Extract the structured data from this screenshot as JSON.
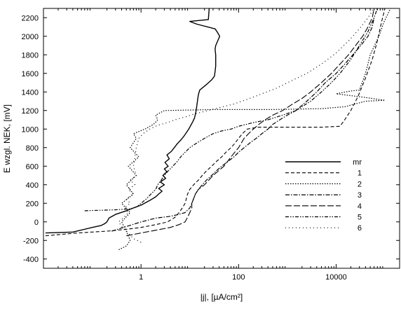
{
  "chart_data": {
    "type": "line",
    "xlabel": "|j|, [µA/cm²]",
    "ylabel": "E wzgl. NEK, [mV]",
    "x_scale": "log",
    "xlim": [
      0.01,
      200000
    ],
    "ylim": [
      -500,
      2300
    ],
    "x_ticks": [
      1,
      100,
      10000
    ],
    "x_tick_labels": [
      "1",
      "100",
      "10000"
    ],
    "y_ticks": [
      -400,
      -200,
      0,
      200,
      400,
      600,
      800,
      1000,
      1200,
      1400,
      1600,
      1800,
      2000,
      2200
    ],
    "grid": false,
    "legend_position": "right",
    "series": [
      {
        "name": "mr",
        "style": "solid",
        "points": [
          [
            0.011,
            -120
          ],
          [
            0.04,
            -110
          ],
          [
            0.1,
            -60
          ],
          [
            0.15,
            -40
          ],
          [
            0.18,
            -20
          ],
          [
            0.2,
            0
          ],
          [
            0.22,
            40
          ],
          [
            0.3,
            80
          ],
          [
            0.5,
            120
          ],
          [
            0.7,
            150
          ],
          [
            1.0,
            180
          ],
          [
            1.5,
            230
          ],
          [
            2.0,
            270
          ],
          [
            2.3,
            300
          ],
          [
            2.7,
            330
          ],
          [
            2.3,
            360
          ],
          [
            3.0,
            400
          ],
          [
            2.5,
            430
          ],
          [
            3.2,
            470
          ],
          [
            2.8,
            500
          ],
          [
            3.4,
            540
          ],
          [
            3.0,
            570
          ],
          [
            3.6,
            600
          ],
          [
            3.1,
            640
          ],
          [
            3.8,
            680
          ],
          [
            3.4,
            720
          ],
          [
            4.2,
            760
          ],
          [
            4.8,
            800
          ],
          [
            5.5,
            840
          ],
          [
            6.5,
            880
          ],
          [
            7.5,
            920
          ],
          [
            8.5,
            960
          ],
          [
            9.5,
            1000
          ],
          [
            10.5,
            1040
          ],
          [
            11.5,
            1080
          ],
          [
            12.5,
            1120
          ],
          [
            13,
            1160
          ],
          [
            13.5,
            1200
          ],
          [
            14,
            1260
          ],
          [
            14.5,
            1320
          ],
          [
            15,
            1370
          ],
          [
            16,
            1420
          ],
          [
            22,
            1480
          ],
          [
            28,
            1530
          ],
          [
            32,
            1570
          ],
          [
            33,
            1620
          ],
          [
            34,
            1680
          ],
          [
            34,
            1740
          ],
          [
            34,
            1800
          ],
          [
            33,
            1860
          ],
          [
            34,
            1900
          ],
          [
            38,
            1960
          ],
          [
            41,
            2000
          ],
          [
            37,
            2040
          ],
          [
            33,
            2080
          ],
          [
            14,
            2130
          ],
          [
            10,
            2160
          ],
          [
            24,
            2180
          ],
          [
            25,
            2300
          ]
        ]
      },
      {
        "name": "1",
        "style": "dashed",
        "points": [
          [
            0.011,
            -150
          ],
          [
            0.05,
            -120
          ],
          [
            0.2,
            -100
          ],
          [
            0.5,
            -80
          ],
          [
            1.0,
            -60
          ],
          [
            2.0,
            -30
          ],
          [
            3.5,
            0
          ],
          [
            5.0,
            50
          ],
          [
            6.0,
            100
          ],
          [
            7.0,
            150
          ],
          [
            8.0,
            200
          ],
          [
            8.5,
            250
          ],
          [
            9.0,
            300
          ],
          [
            10,
            350
          ],
          [
            12,
            400
          ],
          [
            15,
            450
          ],
          [
            18,
            500
          ],
          [
            22,
            550
          ],
          [
            28,
            600
          ],
          [
            35,
            650
          ],
          [
            45,
            700
          ],
          [
            55,
            750
          ],
          [
            70,
            800
          ],
          [
            85,
            850
          ],
          [
            100,
            900
          ],
          [
            120,
            950
          ],
          [
            150,
            1000
          ],
          [
            250,
            1020
          ],
          [
            1000,
            1020
          ],
          [
            5000,
            1020
          ],
          [
            12000,
            1030
          ],
          [
            15000,
            1100
          ],
          [
            20000,
            1200
          ],
          [
            28000,
            1350
          ],
          [
            40000,
            1550
          ],
          [
            55000,
            1750
          ],
          [
            70000,
            1950
          ],
          [
            85000,
            2150
          ],
          [
            100000,
            2300
          ]
        ]
      },
      {
        "name": "2",
        "style": "dotted",
        "points": [
          [
            0.35,
            -300
          ],
          [
            0.5,
            -260
          ],
          [
            0.6,
            -200
          ],
          [
            0.5,
            -100
          ],
          [
            0.4,
            0
          ],
          [
            0.6,
            100
          ],
          [
            0.4,
            200
          ],
          [
            0.7,
            300
          ],
          [
            0.5,
            400
          ],
          [
            0.8,
            500
          ],
          [
            0.55,
            600
          ],
          [
            0.9,
            700
          ],
          [
            0.6,
            800
          ],
          [
            0.8,
            900
          ],
          [
            0.7,
            950
          ],
          [
            1.2,
            1000
          ],
          [
            1.8,
            1050
          ],
          [
            2.2,
            1100
          ],
          [
            2.0,
            1150
          ],
          [
            3.0,
            1200
          ],
          [
            30,
            1210
          ],
          [
            500,
            1210
          ],
          [
            5000,
            1220
          ],
          [
            15000,
            1240
          ],
          [
            40000,
            1300
          ],
          [
            100000,
            1310
          ],
          [
            40000,
            1340
          ],
          [
            10000,
            1380
          ],
          [
            20000,
            1410
          ],
          [
            30000,
            1420
          ],
          [
            40000,
            1600
          ],
          [
            50000,
            1800
          ],
          [
            75000,
            2000
          ],
          [
            95000,
            2150
          ],
          [
            130000,
            2300
          ]
        ]
      },
      {
        "name": "3",
        "style": "dashdot",
        "points": [
          [
            0.25,
            -100
          ],
          [
            0.5,
            -50
          ],
          [
            1.0,
            0
          ],
          [
            2.0,
            40
          ],
          [
            4.0,
            60
          ],
          [
            6.0,
            80
          ],
          [
            8.0,
            100
          ],
          [
            10,
            150
          ],
          [
            11,
            200
          ],
          [
            12,
            250
          ],
          [
            13,
            300
          ],
          [
            15,
            350
          ],
          [
            18,
            400
          ],
          [
            22,
            450
          ],
          [
            28,
            500
          ],
          [
            35,
            550
          ],
          [
            45,
            600
          ],
          [
            60,
            650
          ],
          [
            80,
            700
          ],
          [
            100,
            750
          ],
          [
            130,
            800
          ],
          [
            170,
            850
          ],
          [
            230,
            900
          ],
          [
            300,
            950
          ],
          [
            400,
            1000
          ],
          [
            500,
            1050
          ],
          [
            700,
            1100
          ],
          [
            1000,
            1150
          ],
          [
            1500,
            1200
          ],
          [
            2500,
            1300
          ],
          [
            4000,
            1400
          ],
          [
            6000,
            1500
          ],
          [
            10000,
            1600
          ],
          [
            15000,
            1700
          ],
          [
            22000,
            1800
          ],
          [
            32000,
            1900
          ],
          [
            45000,
            2000
          ],
          [
            55000,
            2100
          ],
          [
            60000,
            2200
          ]
        ]
      },
      {
        "name": "4",
        "style": "longdash",
        "points": [
          [
            0.5,
            -150
          ],
          [
            1.0,
            -120
          ],
          [
            2.0,
            -90
          ],
          [
            4.0,
            -60
          ],
          [
            6.0,
            -30
          ],
          [
            8.0,
            0
          ],
          [
            9.0,
            50
          ],
          [
            10,
            100
          ],
          [
            11,
            150
          ],
          [
            11,
            200
          ],
          [
            12,
            250
          ],
          [
            13,
            300
          ],
          [
            15,
            350
          ],
          [
            20,
            400
          ],
          [
            30,
            500
          ],
          [
            50,
            600
          ],
          [
            70,
            700
          ],
          [
            100,
            800
          ],
          [
            130,
            900
          ],
          [
            160,
            950
          ],
          [
            200,
            1000
          ],
          [
            260,
            1050
          ],
          [
            350,
            1100
          ],
          [
            500,
            1150
          ],
          [
            800,
            1200
          ],
          [
            1200,
            1260
          ],
          [
            2000,
            1330
          ],
          [
            3000,
            1400
          ],
          [
            5000,
            1500
          ],
          [
            8000,
            1600
          ],
          [
            12000,
            1700
          ],
          [
            18000,
            1800
          ],
          [
            25000,
            1900
          ],
          [
            35000,
            2000
          ],
          [
            45000,
            2100
          ],
          [
            55000,
            2200
          ],
          [
            60000,
            2300
          ]
        ]
      },
      {
        "name": "5",
        "style": "dashdotdot",
        "points": [
          [
            0.07,
            120
          ],
          [
            0.3,
            130
          ],
          [
            0.6,
            140
          ],
          [
            0.8,
            160
          ],
          [
            1.0,
            200
          ],
          [
            1.3,
            250
          ],
          [
            1.6,
            300
          ],
          [
            2.0,
            350
          ],
          [
            2.2,
            400
          ],
          [
            2.6,
            450
          ],
          [
            3.0,
            500
          ],
          [
            3.6,
            550
          ],
          [
            4.5,
            600
          ],
          [
            5.5,
            650
          ],
          [
            6.5,
            700
          ],
          [
            8.0,
            750
          ],
          [
            10,
            800
          ],
          [
            14,
            850
          ],
          [
            20,
            900
          ],
          [
            30,
            950
          ],
          [
            45,
            980
          ],
          [
            70,
            1000
          ],
          [
            100,
            1030
          ],
          [
            200,
            1070
          ],
          [
            400,
            1100
          ],
          [
            800,
            1150
          ],
          [
            1500,
            1200
          ],
          [
            3000,
            1300
          ],
          [
            5000,
            1400
          ],
          [
            8000,
            1500
          ],
          [
            12000,
            1600
          ],
          [
            20000,
            1750
          ],
          [
            30000,
            1900
          ],
          [
            45000,
            2050
          ],
          [
            60000,
            2200
          ],
          [
            70000,
            2300
          ]
        ]
      },
      {
        "name": "6",
        "style": "sparse-dotted",
        "points": [
          [
            1.0,
            -220
          ],
          [
            0.7,
            -180
          ],
          [
            0.5,
            -100
          ],
          [
            0.4,
            -50
          ],
          [
            0.35,
            0
          ],
          [
            0.45,
            50
          ],
          [
            0.55,
            100
          ],
          [
            0.45,
            150
          ],
          [
            0.6,
            200
          ],
          [
            0.5,
            250
          ],
          [
            0.7,
            300
          ],
          [
            0.55,
            350
          ],
          [
            0.75,
            400
          ],
          [
            0.6,
            450
          ],
          [
            0.8,
            500
          ],
          [
            0.7,
            600
          ],
          [
            0.75,
            700
          ],
          [
            0.8,
            800
          ],
          [
            0.9,
            900
          ],
          [
            1.1,
            950
          ],
          [
            1.5,
            1000
          ],
          [
            2.2,
            1040
          ],
          [
            3.5,
            1070
          ],
          [
            5.0,
            1100
          ],
          [
            8.0,
            1130
          ],
          [
            12,
            1160
          ],
          [
            20,
            1190
          ],
          [
            40,
            1230
          ],
          [
            80,
            1270
          ],
          [
            150,
            1320
          ],
          [
            300,
            1380
          ],
          [
            600,
            1440
          ],
          [
            1200,
            1520
          ],
          [
            2500,
            1600
          ],
          [
            5000,
            1700
          ],
          [
            10000,
            1820
          ],
          [
            18000,
            1950
          ],
          [
            30000,
            2080
          ],
          [
            45000,
            2200
          ],
          [
            60000,
            2300
          ]
        ]
      }
    ]
  }
}
